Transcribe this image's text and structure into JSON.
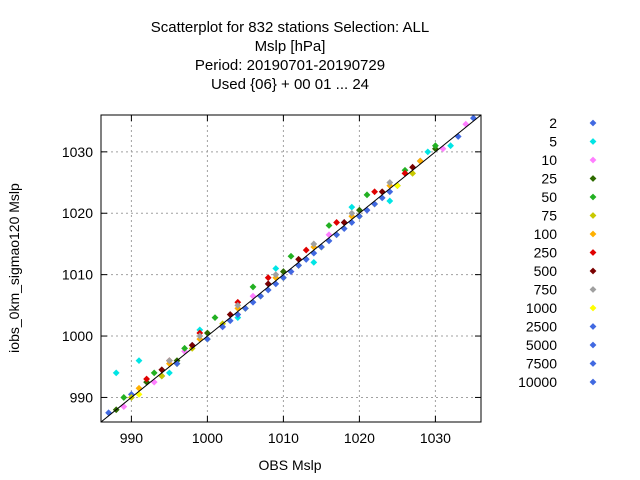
{
  "chart_data": {
    "type": "scatter",
    "title_lines": [
      "Scatterplot for  832 stations Selection: ALL",
      "Mslp [hPa]",
      "Period: 20190701-20190729",
      "Used {06} + 00 01 ... 24"
    ],
    "xlabel": "OBS Mslp",
    "ylabel": "iobs_0km_sigmao120 Mslp",
    "xlim": [
      986,
      1036
    ],
    "ylim": [
      986,
      1036
    ],
    "x_ticks": [
      990,
      1000,
      1010,
      1020,
      1030
    ],
    "y_ticks": [
      990,
      1000,
      1010,
      1020,
      1030
    ],
    "grid": true,
    "diagonal_line": true,
    "legend_position": "right",
    "legend_title": "",
    "series": [
      {
        "name": "2",
        "color": "#4169e1",
        "x": [
          987,
          990,
          994,
          998,
          1003,
          1008,
          1013,
          1018,
          1023,
          1028,
          1033,
          1035
        ],
        "y": [
          987.5,
          990.5,
          993.5,
          998.5,
          1002.5,
          1008.5,
          1012.5,
          1018.5,
          1022.5,
          1028.5,
          1032.5,
          1035.5
        ]
      },
      {
        "name": "5",
        "color": "#00e5e5",
        "x": [
          988,
          991,
          995,
          999,
          1004,
          1009,
          1014,
          1019,
          1024,
          1029,
          1032
        ],
        "y": [
          994,
          996,
          994,
          1001,
          1003,
          1011,
          1012,
          1021,
          1022,
          1030,
          1031
        ]
      },
      {
        "name": "10",
        "color": "#ff7fff",
        "x": [
          989,
          993,
          997,
          1002,
          1006,
          1011,
          1016,
          1021,
          1026,
          1031,
          1034
        ],
        "y": [
          988.5,
          992.5,
          997.5,
          1001.5,
          1006.5,
          1010.5,
          1016.5,
          1020.5,
          1026.5,
          1030.5,
          1034.5
        ]
      },
      {
        "name": "25",
        "color": "#2e6b00",
        "x": [
          988,
          992,
          996,
          1000,
          1005,
          1010,
          1015,
          1020,
          1025,
          1030
        ],
        "y": [
          988,
          992.5,
          996,
          1000.5,
          1004.5,
          1010.5,
          1014.5,
          1020.5,
          1024.5,
          1030.5
        ]
      },
      {
        "name": "50",
        "color": "#22b022",
        "x": [
          989,
          993,
          997,
          1001,
          1006,
          1011,
          1016,
          1021,
          1026,
          1030
        ],
        "y": [
          990,
          994,
          998,
          1003,
          1008,
          1013,
          1018,
          1023,
          1027,
          1031
        ]
      },
      {
        "name": "75",
        "color": "#c8c800",
        "x": [
          990,
          994,
          998,
          1002,
          1007,
          1012,
          1017,
          1022,
          1027
        ],
        "y": [
          990,
          993.5,
          998,
          1002,
          1006.5,
          1011.5,
          1016.5,
          1021.5,
          1026.5
        ]
      },
      {
        "name": "100",
        "color": "#ffb000",
        "x": [
          991,
          995,
          999,
          1004,
          1009,
          1014,
          1019,
          1024,
          1028
        ],
        "y": [
          991.5,
          995.5,
          999.5,
          1004.5,
          1009.5,
          1014.5,
          1019.5,
          1024.5,
          1028.5
        ]
      },
      {
        "name": "250",
        "color": "#e00000",
        "x": [
          992,
          995,
          999,
          1004,
          1008,
          1013,
          1017,
          1022,
          1026
        ],
        "y": [
          993,
          996,
          1000.5,
          1005.5,
          1009.5,
          1014,
          1018.5,
          1023.5,
          1026.5
        ]
      },
      {
        "name": "500",
        "color": "#7a0000",
        "x": [
          994,
          998,
          1003,
          1008,
          1012,
          1018,
          1023,
          1027
        ],
        "y": [
          994.5,
          998.5,
          1003.5,
          1008.5,
          1012.5,
          1018.5,
          1023.5,
          1027.5
        ]
      },
      {
        "name": "750",
        "color": "#a0a0a0",
        "x": [
          995,
          999,
          1004,
          1009,
          1014,
          1019,
          1024
        ],
        "y": [
          996,
          1000,
          1005,
          1010,
          1015,
          1020,
          1025
        ]
      },
      {
        "name": "1000",
        "color": "#ffff00",
        "x": [
          991,
          996,
          1000,
          1005,
          1010,
          1015,
          1020,
          1025
        ],
        "y": [
          990.5,
          995.5,
          999.5,
          1004.5,
          1009.5,
          1014.5,
          1019.5,
          1024.5
        ]
      },
      {
        "name": "2500",
        "color": "#4169e1",
        "x": [
          996,
          1000,
          1004,
          1008,
          1012,
          1016,
          1020,
          1024
        ],
        "y": [
          995.5,
          999.5,
          1003.5,
          1007.5,
          1011.5,
          1015.5,
          1019.5,
          1023.5
        ]
      },
      {
        "name": "5000",
        "color": "#4169e1",
        "x": [
          1002,
          1006,
          1010,
          1014,
          1018,
          1022
        ],
        "y": [
          1001.5,
          1005.5,
          1009.5,
          1013.5,
          1017.5,
          1021.5
        ]
      },
      {
        "name": "7500",
        "color": "#4169e1",
        "x": [
          1005,
          1009,
          1013,
          1017,
          1021
        ],
        "y": [
          1004.5,
          1008.5,
          1012.5,
          1016.5,
          1020.5
        ]
      },
      {
        "name": "10000",
        "color": "#4169e1",
        "x": [
          1007,
          1011,
          1015,
          1019
        ],
        "y": [
          1006.5,
          1010.5,
          1014.5,
          1018.5
        ]
      }
    ]
  }
}
